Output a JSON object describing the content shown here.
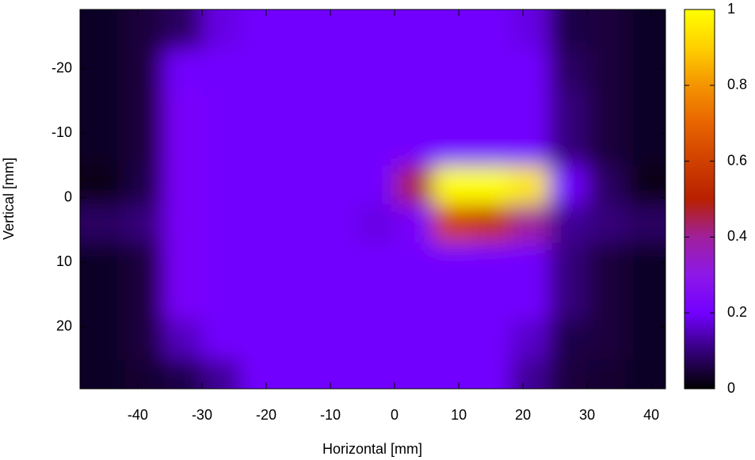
{
  "chart_data": {
    "type": "heatmap",
    "xlabel": "Horizontal [mm]",
    "ylabel": "Vertical [mm]",
    "x": [
      -45,
      -39,
      -33,
      -27,
      -21,
      -15,
      -9,
      -3,
      3,
      9,
      15,
      21,
      27,
      33,
      39
    ],
    "y": [
      -26,
      -20,
      -14,
      -8,
      -2,
      4,
      10,
      16,
      22,
      28
    ],
    "z": [
      [
        0.03,
        0.05,
        0.08,
        0.18,
        0.2,
        0.2,
        0.2,
        0.2,
        0.2,
        0.2,
        0.2,
        0.18,
        0.06,
        0.05,
        0.03
      ],
      [
        0.03,
        0.05,
        0.2,
        0.2,
        0.2,
        0.2,
        0.2,
        0.2,
        0.2,
        0.2,
        0.2,
        0.2,
        0.08,
        0.05,
        0.03
      ],
      [
        0.03,
        0.05,
        0.22,
        0.2,
        0.2,
        0.2,
        0.2,
        0.2,
        0.2,
        0.2,
        0.2,
        0.2,
        0.1,
        0.05,
        0.03
      ],
      [
        0.03,
        0.05,
        0.22,
        0.2,
        0.2,
        0.2,
        0.2,
        0.2,
        0.2,
        0.2,
        0.2,
        0.2,
        0.1,
        0.05,
        0.03
      ],
      [
        0.02,
        0.06,
        0.22,
        0.2,
        0.2,
        0.2,
        0.2,
        0.2,
        0.45,
        1,
        1,
        0.95,
        0.2,
        0.08,
        0.02
      ],
      [
        0.08,
        0.1,
        0.22,
        0.2,
        0.2,
        0.2,
        0.2,
        0.18,
        0.22,
        0.6,
        0.55,
        0.4,
        0.12,
        0.1,
        0.08
      ],
      [
        0.03,
        0.05,
        0.22,
        0.2,
        0.2,
        0.2,
        0.2,
        0.2,
        0.2,
        0.2,
        0.2,
        0.2,
        0.1,
        0.05,
        0.03
      ],
      [
        0.03,
        0.05,
        0.22,
        0.2,
        0.2,
        0.2,
        0.2,
        0.2,
        0.2,
        0.2,
        0.2,
        0.2,
        0.1,
        0.05,
        0.03
      ],
      [
        0.03,
        0.05,
        0.15,
        0.2,
        0.2,
        0.2,
        0.2,
        0.2,
        0.2,
        0.2,
        0.2,
        0.16,
        0.06,
        0.05,
        0.03
      ],
      [
        0.03,
        0.04,
        0.06,
        0.12,
        0.2,
        0.2,
        0.2,
        0.2,
        0.2,
        0.2,
        0.2,
        0.12,
        0.05,
        0.04,
        0.03
      ]
    ],
    "xlim": [
      -49,
      42.2
    ],
    "xticks": [
      -40,
      -30,
      -20,
      -10,
      0,
      10,
      20,
      30,
      40
    ],
    "ylim": [
      -29.2,
      29.6
    ],
    "y_reversed": true,
    "yticks": [
      -20,
      -10,
      0,
      10,
      20
    ],
    "zlim": [
      0,
      1
    ],
    "zticks": [
      0,
      0.2,
      0.4,
      0.6,
      0.8,
      1
    ],
    "colormap": [
      [
        0,
        "#000000"
      ],
      [
        0.1,
        "#34007a"
      ],
      [
        0.2,
        "#7200ff"
      ],
      [
        0.3,
        "#8e18e8"
      ],
      [
        0.4,
        "#a0209c"
      ],
      [
        0.5,
        "#b82000"
      ],
      [
        0.6,
        "#d04000"
      ],
      [
        0.7,
        "#e86400"
      ],
      [
        0.8,
        "#f49400"
      ],
      [
        0.9,
        "#ffd000"
      ],
      [
        1,
        "#ffff00"
      ]
    ]
  }
}
